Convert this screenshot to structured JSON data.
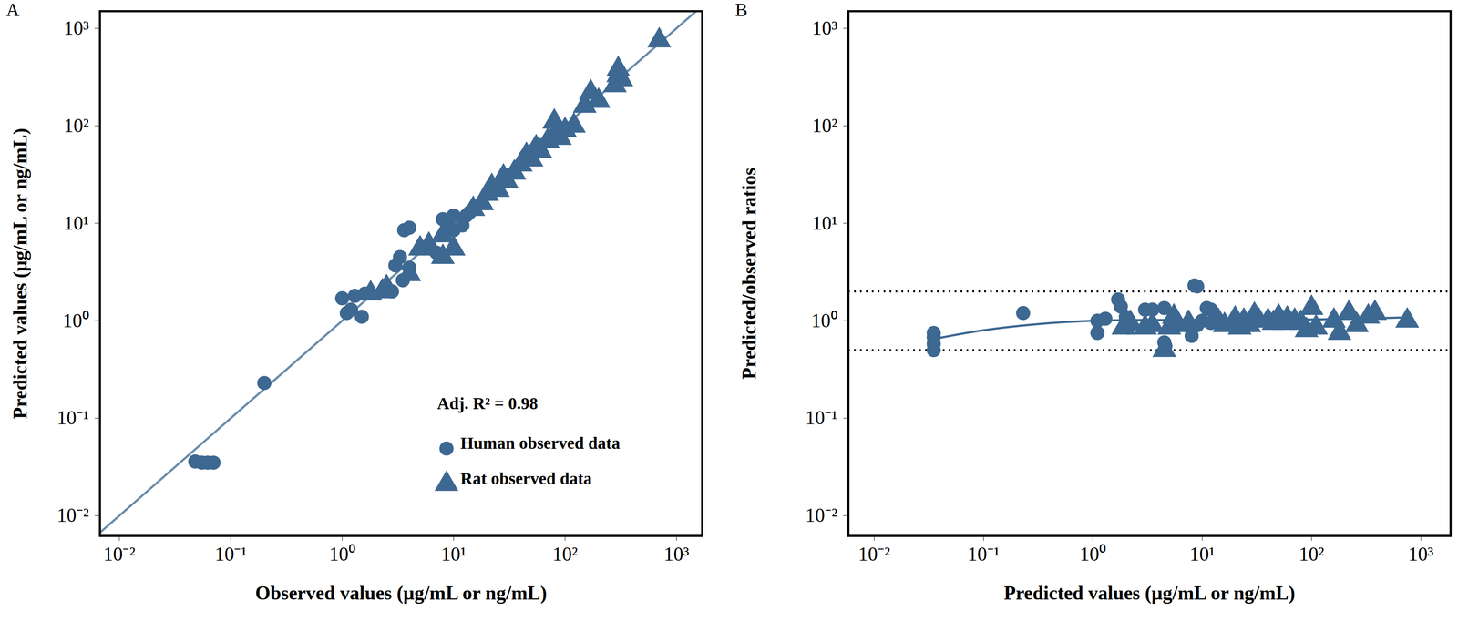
{
  "chart_data": [
    {
      "type": "scatter",
      "panel_label": "A",
      "log": true,
      "legend": "bottom-right",
      "x_label": "Observed values (µg/mL or ng/mL)",
      "y_label": "Predicted values (µg/mL or ng/mL)",
      "xlim": [
        0.0067,
        1700
      ],
      "ylim": [
        0.0062,
        1500
      ],
      "xticks": [
        {
          "value": 0.01,
          "label": "10⁻²"
        },
        {
          "value": 0.1,
          "label": "10⁻¹"
        },
        {
          "value": 1,
          "label": "10⁰"
        },
        {
          "value": 10,
          "label": "10¹"
        },
        {
          "value": 100,
          "label": "10²"
        },
        {
          "value": 1000,
          "label": "10³"
        }
      ],
      "yticks": [
        {
          "value": 0.01,
          "label": "10⁻²"
        },
        {
          "value": 0.1,
          "label": "10⁻¹"
        },
        {
          "value": 1,
          "label": "10⁰"
        },
        {
          "value": 10,
          "label": "10¹"
        },
        {
          "value": 100,
          "label": "10²"
        },
        {
          "value": 1000,
          "label": "10³"
        }
      ],
      "annotation": "Adj. R² = 0.98",
      "identity_line": {
        "x": [
          0.0067,
          1700
        ],
        "y": [
          0.0067,
          1700
        ],
        "color": "#6a8cab"
      },
      "series": [
        {
          "name": "Human observed data",
          "marker": "circle",
          "color": "#3d6891",
          "x": [
            0.048,
            0.055,
            0.062,
            0.07,
            0.2,
            1.0,
            1.1,
            1.3,
            1.5,
            1.6,
            1.2,
            3,
            3.3,
            3.6,
            4,
            4,
            3.5,
            2.8,
            7,
            8,
            9,
            10,
            12,
            13,
            14,
            10
          ],
          "y": [
            0.036,
            0.035,
            0.035,
            0.035,
            0.23,
            1.7,
            1.2,
            1.8,
            1.1,
            1.9,
            1.3,
            3.7,
            4.5,
            8.5,
            9,
            3.5,
            2.6,
            2.0,
            5,
            11,
            9.5,
            8.5,
            9.5,
            12,
            13,
            12
          ]
        },
        {
          "name": "Rat observed data",
          "marker": "triangle",
          "color": "#3d6891",
          "x": [
            1.8,
            2.3,
            2.5,
            4,
            5,
            8,
            10,
            6,
            8,
            15,
            18,
            20,
            22,
            25,
            28,
            30,
            35,
            40,
            45,
            50,
            55,
            60,
            70,
            80,
            80,
            90,
            100,
            120,
            150,
            170,
            200,
            280,
            300,
            300,
            320,
            700
          ],
          "y": [
            1.9,
            2,
            2.2,
            3,
            5.5,
            4.5,
            5.5,
            6,
            7.5,
            14,
            16,
            20,
            24,
            22,
            30,
            27,
            33,
            40,
            50,
            45,
            60,
            55,
            70,
            80,
            110,
            75,
            90,
            100,
            160,
            220,
            180,
            260,
            330,
            380,
            300,
            750
          ]
        }
      ]
    },
    {
      "type": "scatter",
      "panel_label": "B",
      "log": true,
      "x_label": "Predicted values (µg/mL or ng/mL)",
      "y_label": "Predicted/observed ratios",
      "xlim": [
        0.0058,
        1870
      ],
      "ylim": [
        0.0062,
        1500
      ],
      "xticks": [
        {
          "value": 0.01,
          "label": "10⁻²"
        },
        {
          "value": 0.1,
          "label": "10⁻¹"
        },
        {
          "value": 1,
          "label": "10⁰"
        },
        {
          "value": 10,
          "label": "10¹"
        },
        {
          "value": 100,
          "label": "10²"
        },
        {
          "value": 1000,
          "label": "10³"
        }
      ],
      "yticks": [
        {
          "value": 0.01,
          "label": "10⁻²"
        },
        {
          "value": 0.1,
          "label": "10⁻¹"
        },
        {
          "value": 1,
          "label": "10⁰"
        },
        {
          "value": 10,
          "label": "10¹"
        },
        {
          "value": 100,
          "label": "10²"
        },
        {
          "value": 1000,
          "label": "10³"
        }
      ],
      "reference_lines": [
        {
          "y": 0.5,
          "line_style": "dotted",
          "color": "#000000"
        },
        {
          "y": 2,
          "line_style": "dotted",
          "color": "#000000"
        }
      ],
      "trend": {
        "x": [
          0.035,
          0.1,
          0.3,
          1,
          3,
          10,
          100,
          700
        ],
        "y": [
          0.65,
          0.8,
          0.92,
          1.0,
          1.02,
          1.02,
          1.03,
          1.08
        ],
        "color": "#3d6891"
      },
      "series": [
        {
          "marker": "circle",
          "color": "#3d6891",
          "x": [
            0.035,
            0.035,
            0.035,
            0.035,
            0.23,
            1.1,
            1.1,
            1.3,
            1.7,
            1.8,
            2,
            2.1,
            3,
            3.5,
            4.5,
            4.5,
            4.6,
            8.5,
            9,
            8,
            9,
            10,
            11,
            12,
            12,
            13
          ],
          "y": [
            0.5,
            0.58,
            0.68,
            0.75,
            1.2,
            0.75,
            1.0,
            1.05,
            1.65,
            1.4,
            1.1,
            0.85,
            1.3,
            1.3,
            1.35,
            0.6,
            0.55,
            2.3,
            2.25,
            0.7,
            0.9,
            1.0,
            1.35,
            1.3,
            0.95,
            1.0
          ]
        },
        {
          "marker": "triangle",
          "color": "#3d6891",
          "x": [
            1.9,
            2.2,
            3,
            3.5,
            4.5,
            5,
            5.5,
            6,
            7.5,
            14,
            16,
            20,
            22,
            24,
            27,
            30,
            33,
            40,
            45,
            50,
            55,
            60,
            70,
            80,
            90,
            100,
            110,
            160,
            180,
            220,
            260,
            330,
            380,
            750
          ],
          "y": [
            0.85,
            0.95,
            0.85,
            0.9,
            0.5,
            0.85,
            1.1,
            0.9,
            0.95,
            1.0,
            0.9,
            1.05,
            0.85,
            1.0,
            0.9,
            1.15,
            1.0,
            1.0,
            0.95,
            1.1,
            0.95,
            1.05,
            1.0,
            0.95,
            0.8,
            1.35,
            0.85,
            1.0,
            0.75,
            1.2,
            0.9,
            1.1,
            1.2,
            1.0
          ]
        }
      ]
    }
  ]
}
